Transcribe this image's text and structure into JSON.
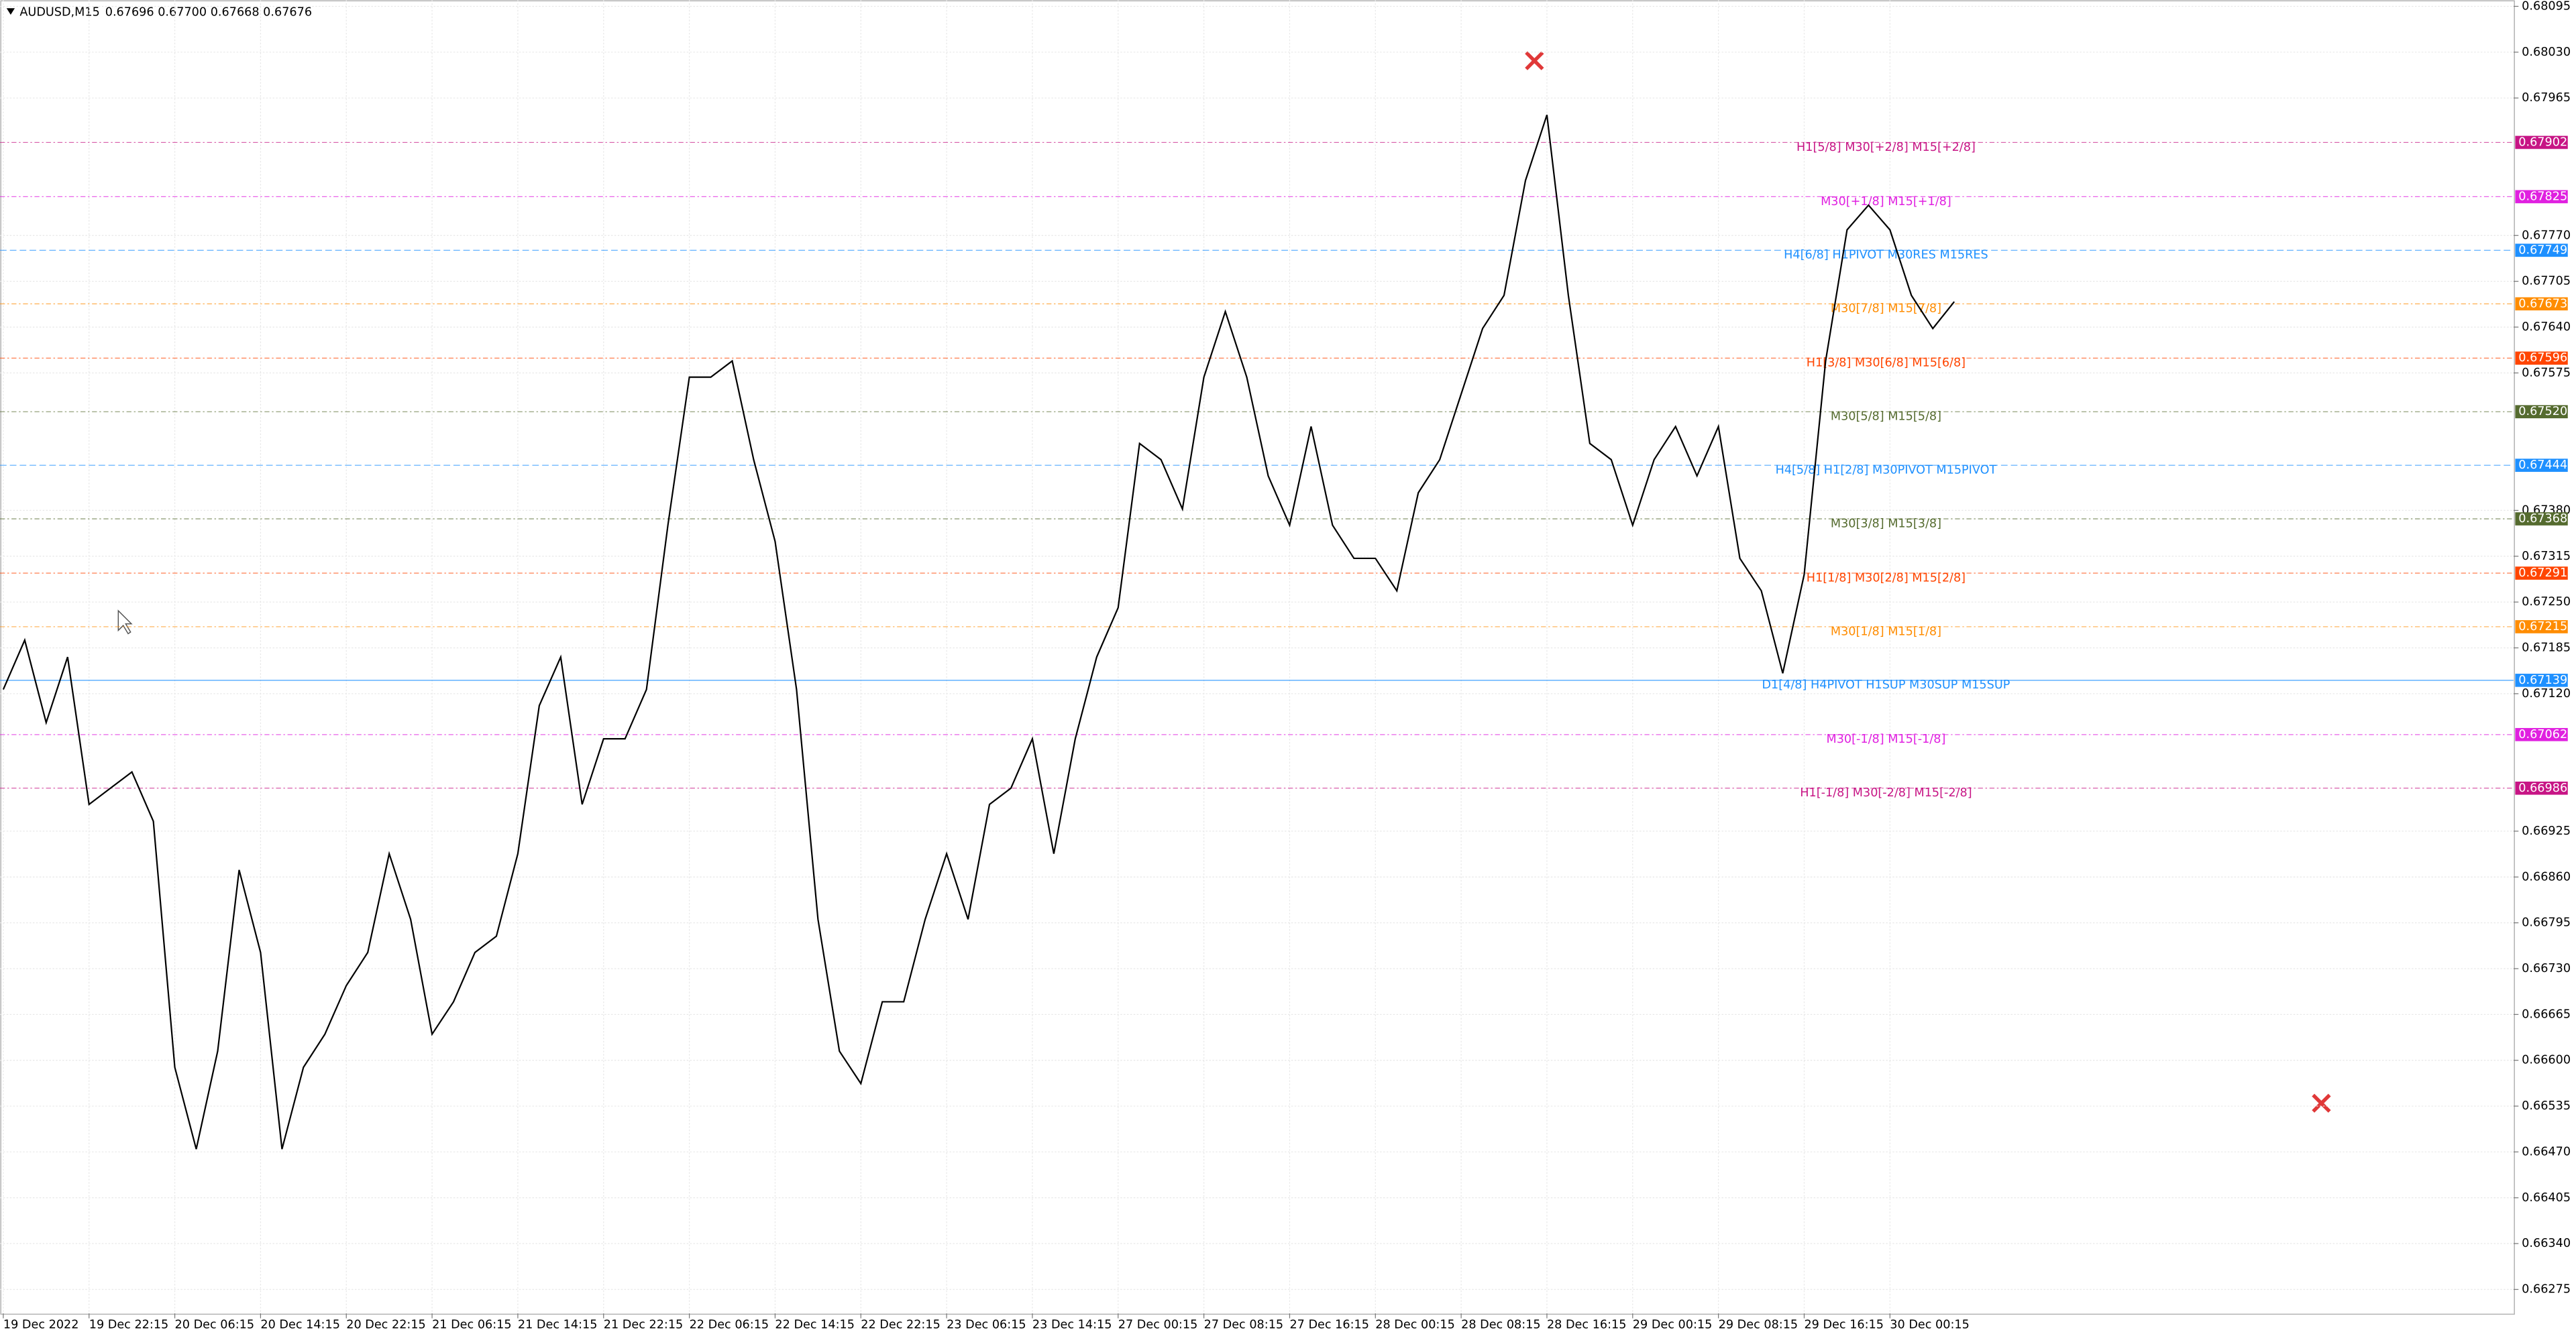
{
  "chart_data": {
    "type": "line",
    "title": "AUDUSD,M15",
    "subtitle": "0.67696 0.67700 0.67668 0.67676",
    "color": "#000000",
    "grid": true,
    "categories": [
      "19 Dec 2022",
      null,
      null,
      null,
      "19 Dec 22:15",
      null,
      null,
      null,
      "20 Dec 06:15",
      null,
      null,
      null,
      "20 Dec 14:15",
      null,
      null,
      null,
      "20 Dec 22:15",
      null,
      null,
      null,
      "21 Dec 06:15",
      null,
      null,
      null,
      "21 Dec 14:15",
      null,
      null,
      null,
      "21 Dec 22:15",
      null,
      null,
      null,
      "22 Dec 06:15",
      null,
      null,
      null,
      "22 Dec 14:15",
      null,
      null,
      null,
      "22 Dec 22:15",
      null,
      null,
      null,
      "23 Dec 06:15",
      null,
      null,
      null,
      "23 Dec 14:15",
      null,
      null,
      null,
      "27 Dec 00:15",
      null,
      null,
      null,
      "27 Dec 08:15",
      null,
      null,
      null,
      "27 Dec 16:15",
      null,
      null,
      null,
      "28 Dec 00:15",
      null,
      null,
      null,
      "28 Dec 08:15",
      null,
      null,
      null,
      "28 Dec 16:15",
      null,
      null,
      null,
      "29 Dec 00:15",
      null,
      null,
      null,
      "29 Dec 08:15",
      null,
      null,
      null,
      "29 Dec 16:15",
      null,
      null,
      null,
      "30 Dec 00:15",
      null,
      null,
      null
    ],
    "values": [
      0.67126,
      0.67196,
      0.67079,
      0.67172,
      0.66963,
      0.66986,
      0.67009,
      0.66939,
      0.6659,
      0.66474,
      0.66613,
      0.6687,
      0.66753,
      0.66474,
      0.6659,
      0.66637,
      0.66706,
      0.66753,
      0.66893,
      0.668,
      0.66637,
      0.66683,
      0.66753,
      0.66776,
      0.66893,
      0.67103,
      0.67172,
      0.66963,
      0.67056,
      0.67056,
      0.67126,
      0.67359,
      0.67569,
      0.67569,
      0.67592,
      0.67452,
      0.67336,
      0.67126,
      0.668,
      0.66613,
      0.66567,
      0.66683,
      0.66683,
      0.668,
      0.66893,
      0.668,
      0.66963,
      0.66986,
      0.67056,
      0.66893,
      0.67056,
      0.67172,
      0.67242,
      0.67475,
      0.67452,
      0.67382,
      0.67569,
      0.67662,
      0.67569,
      0.67429,
      0.67359,
      0.67499,
      0.67359,
      0.67312,
      0.67312,
      0.67266,
      0.67405,
      0.67452,
      0.67545,
      0.67638,
      0.67685,
      0.67848,
      0.67941,
      0.67685,
      0.67475,
      0.67452,
      0.67359,
      0.67452,
      0.67499,
      0.67429,
      0.67499,
      0.67312,
      0.67266,
      0.67149,
      0.67289,
      0.67592,
      0.67778,
      0.67813,
      0.67778,
      0.67685,
      0.67638,
      0.67676
    ],
    "ylim": [
      0.66241,
      0.68104
    ],
    "yticks": [
      0.68095,
      {
        "value": 0.6803,
        "label": "0.68030"
      },
      0.67965,
      {
        "value": 0.6777,
        "label": "0.67770"
      },
      0.67705,
      {
        "value": 0.6764,
        "label": "0.67640"
      },
      0.67575,
      {
        "value": 0.6738,
        "label": "0.67380"
      },
      0.67315,
      {
        "value": 0.6725,
        "label": "0.67250"
      },
      0.67185,
      {
        "value": 0.6712,
        "label": "0.67120"
      },
      0.66925,
      {
        "value": 0.6686,
        "label": "0.66860"
      },
      0.66795,
      {
        "value": 0.6673,
        "label": "0.66730"
      },
      0.66665,
      {
        "value": 0.666,
        "label": "0.66600"
      },
      0.66535,
      {
        "value": 0.6647,
        "label": "0.66470"
      },
      0.66405,
      {
        "value": 0.6634,
        "label": "0.66340"
      },
      0.66275
    ],
    "levels": [
      {
        "name": "H1[5/8] M30[+2/8] M15[+2/8]",
        "value": 0.67902,
        "color": "#c71585"
      },
      {
        "name": "M30[+1/8] M15[+1/8]",
        "value": 0.67825,
        "color": "#e020e0"
      },
      {
        "name": "H4[6/8] H1PIVOT M30RES M15RES",
        "value": 0.67749,
        "color": "#1e90ff"
      },
      {
        "name": "M30[7/8] M15[7/8]",
        "value": 0.67673,
        "color": "#ff8c00"
      },
      {
        "name": "H1[3/8] M30[6/8] M15[6/8]",
        "value": 0.67596,
        "color": "#ff4500"
      },
      {
        "name": "M30[5/8] M15[5/8]",
        "value": 0.6752,
        "value_label": "0.67520",
        "color": "#556b2f"
      },
      {
        "name": "H4[5/8] H1[2/8] M30PIVOT M15PIVOT",
        "value": 0.67444,
        "color": "#1e90ff"
      },
      {
        "name": "M30[3/8] M15[3/8]",
        "value": 0.67368,
        "color": "#556b2f"
      },
      {
        "name": "H1[1/8] M30[2/8] M15[2/8]",
        "value": 0.67291,
        "color": "#ff4500"
      },
      {
        "name": "M30[1/8] M15[1/8]",
        "value": 0.67215,
        "color": "#ff8c00"
      },
      {
        "name": "D1[4/8] H4PIVOT H1SUP M30SUP M15SUP",
        "value": 0.67139,
        "color": "#1e90ff"
      },
      {
        "name": "M30[-1/8] M15[-1/8]",
        "value": 0.67062,
        "color": "#e020e0"
      },
      {
        "name": "H1[-1/8] M30[-2/8] M15[-2/8]",
        "value": 0.66986,
        "color": "#c71585"
      }
    ]
  }
}
